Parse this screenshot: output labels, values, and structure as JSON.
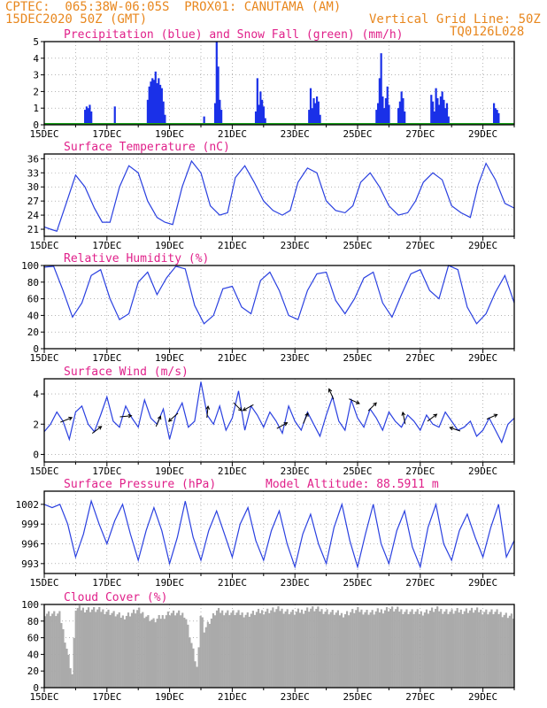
{
  "header": {
    "line1": "CPTEC:  065:38W-06:05S  PROX01: CANUTAMA (AM)",
    "line2_left": "15DEC2020 50Z (GMT)",
    "line2_right": "Vertical Grid Line: 50Z",
    "line3_right": "TQ0126L028"
  },
  "colors": {
    "precip": "#1a30e8",
    "snow": "#1aa01a",
    "line": "#2a40e0",
    "title": "#e0208a",
    "header": "#e8871e",
    "cloud": "#aaaaaa"
  },
  "x_tick_labels": [
    "15DEC",
    "17DEC",
    "19DEC",
    "21DEC",
    "23DEC",
    "25DEC",
    "27DEC",
    "29DEC"
  ],
  "x_range_days": [
    0,
    15
  ],
  "chart_data": [
    {
      "type": "bar",
      "title": "Precipitation (blue) and Snow Fall (green) (mm/h)",
      "ylim": [
        0,
        5
      ],
      "yticks": [
        "0",
        "1",
        "2",
        "3",
        "4",
        "5"
      ],
      "series": [
        {
          "name": "Precipitation",
          "x_days": [
            1.3,
            1.35,
            1.4,
            1.45,
            1.5,
            2.25,
            3.3,
            3.35,
            3.4,
            3.45,
            3.5,
            3.55,
            3.6,
            3.65,
            3.7,
            3.75,
            3.8,
            3.85,
            5.1,
            5.45,
            5.5,
            5.55,
            5.6,
            5.65,
            6.75,
            6.8,
            6.85,
            6.9,
            6.95,
            7.0,
            7.05,
            8.45,
            8.5,
            8.55,
            8.6,
            8.65,
            8.7,
            8.75,
            8.8,
            10.6,
            10.65,
            10.7,
            10.75,
            10.8,
            10.85,
            10.9,
            10.95,
            11.0,
            11.3,
            11.35,
            11.4,
            11.45,
            11.5,
            12.35,
            12.4,
            12.45,
            12.5,
            12.55,
            12.6,
            12.65,
            12.7,
            12.75,
            12.8,
            12.85,
            12.9,
            14.35,
            14.4,
            14.45,
            14.5
          ],
          "values": [
            0.9,
            1.1,
            1.0,
            1.2,
            0.8,
            1.1,
            1.5,
            2.3,
            2.6,
            2.8,
            2.7,
            3.2,
            2.5,
            2.8,
            2.4,
            2.2,
            1.4,
            0.6,
            0.5,
            1.3,
            5.0,
            3.5,
            1.5,
            0.9,
            0.8,
            2.8,
            1.2,
            2.0,
            1.5,
            1.1,
            0.4,
            0.9,
            2.2,
            1.0,
            1.6,
            1.3,
            1.7,
            1.4,
            0.6,
            0.9,
            1.3,
            2.8,
            4.3,
            1.7,
            1.0,
            1.6,
            2.3,
            1.2,
            1.0,
            1.4,
            2.0,
            1.6,
            0.8,
            1.8,
            1.4,
            0.8,
            2.2,
            1.6,
            1.2,
            1.7,
            2.0,
            1.5,
            1.0,
            1.3,
            0.5,
            1.3,
            1.0,
            0.9,
            0.7
          ]
        },
        {
          "name": "Snow Fall",
          "x_days": [
            0,
            15
          ],
          "values": [
            0,
            0
          ]
        }
      ]
    },
    {
      "type": "line",
      "title": "Surface Temperature (nC)",
      "ylim": [
        19.5,
        37
      ],
      "yticks": [
        "21",
        "24",
        "27",
        "30",
        "33",
        "36"
      ],
      "series": [
        {
          "name": "",
          "x_days": [
            0.0,
            0.2,
            0.4,
            0.7,
            1.0,
            1.3,
            1.6,
            1.85,
            2.1,
            2.4,
            2.7,
            3.0,
            3.3,
            3.6,
            3.85,
            4.1,
            4.4,
            4.7,
            5.0,
            5.3,
            5.6,
            5.85,
            6.1,
            6.4,
            6.7,
            7.0,
            7.3,
            7.6,
            7.85,
            8.1,
            8.4,
            8.7,
            9.0,
            9.3,
            9.6,
            9.85,
            10.1,
            10.4,
            10.7,
            11.0,
            11.3,
            11.6,
            11.85,
            12.1,
            12.4,
            12.7,
            13.0,
            13.3,
            13.6,
            13.85,
            14.1,
            14.4,
            14.7,
            15.0
          ],
          "values": [
            21.5,
            21.0,
            20.6,
            26.5,
            32.5,
            30.0,
            25.5,
            22.5,
            22.5,
            30.0,
            34.5,
            33.0,
            27.0,
            23.5,
            22.5,
            22.0,
            30.0,
            35.5,
            33.0,
            26.0,
            24.0,
            24.5,
            32.0,
            34.5,
            31.0,
            27.0,
            25.0,
            24.0,
            25.0,
            31.0,
            34.0,
            33.0,
            27.0,
            25.0,
            24.5,
            26.0,
            31.0,
            33.0,
            30.0,
            26.0,
            24.0,
            24.5,
            27.0,
            31.0,
            33.0,
            31.5,
            26.0,
            24.5,
            23.5,
            30.5,
            35.0,
            31.5,
            26.5,
            25.5
          ]
        },
        {
          "name": "",
          "x_days": [
            14.4,
            14.65,
            14.85,
            15.0
          ],
          "values": [
            25.5,
            33.0,
            32.0,
            30.5
          ]
        }
      ]
    },
    {
      "type": "line",
      "title": "Relative Humidity (%)",
      "ylim": [
        0,
        100
      ],
      "yticks": [
        "0",
        "20",
        "40",
        "60",
        "80",
        "100"
      ],
      "series": [
        {
          "name": "",
          "x_days": [
            0.0,
            0.3,
            0.6,
            0.9,
            1.2,
            1.5,
            1.8,
            2.1,
            2.4,
            2.7,
            3.0,
            3.3,
            3.6,
            3.9,
            4.2,
            4.5,
            4.8,
            5.1,
            5.4,
            5.7,
            6.0,
            6.3,
            6.6,
            6.9,
            7.2,
            7.5,
            7.8,
            8.1,
            8.4,
            8.7,
            9.0,
            9.3,
            9.6,
            9.9,
            10.2,
            10.5,
            10.8,
            11.1,
            11.4,
            11.7,
            12.0,
            12.3,
            12.6,
            12.9,
            13.2,
            13.5,
            13.8,
            14.1,
            14.4,
            14.7,
            15.0
          ],
          "values": [
            98,
            99,
            70,
            38,
            55,
            88,
            95,
            60,
            35,
            42,
            80,
            92,
            65,
            85,
            99,
            96,
            52,
            30,
            40,
            72,
            75,
            50,
            42,
            82,
            92,
            70,
            40,
            35,
            70,
            90,
            92,
            58,
            42,
            60,
            85,
            92,
            55,
            38,
            65,
            90,
            95,
            70,
            60,
            100,
            95,
            50,
            30,
            42,
            68,
            88,
            55
          ]
        }
      ]
    },
    {
      "type": "line",
      "title": "Surface Wind (m/s)",
      "ylim": [
        -0.5,
        5
      ],
      "yticks": [
        "0",
        "2",
        "4"
      ],
      "series": [
        {
          "name": "",
          "x_days": [
            0.0,
            0.2,
            0.4,
            0.6,
            0.8,
            1.0,
            1.2,
            1.4,
            1.6,
            1.8,
            2.0,
            2.2,
            2.4,
            2.6,
            2.8,
            3.0,
            3.2,
            3.4,
            3.6,
            3.8,
            4.0,
            4.2,
            4.4,
            4.6,
            4.8,
            5.0,
            5.2,
            5.4,
            5.6,
            5.8,
            6.0,
            6.2,
            6.4,
            6.6,
            6.8,
            7.0,
            7.2,
            7.4,
            7.6,
            7.8,
            8.0,
            8.2,
            8.4,
            8.6,
            8.8,
            9.0,
            9.2,
            9.4,
            9.6,
            9.8,
            10.0,
            10.2,
            10.4,
            10.6,
            10.8,
            11.0,
            11.2,
            11.4,
            11.6,
            11.8,
            12.0,
            12.2,
            12.4,
            12.6,
            12.8,
            13.0,
            13.2,
            13.4,
            13.6,
            13.8,
            14.0,
            14.2,
            14.4,
            14.6,
            14.8,
            15.0
          ],
          "values": [
            1.5,
            2.0,
            2.8,
            2.2,
            1.0,
            2.8,
            3.2,
            2.0,
            1.5,
            2.6,
            3.8,
            2.2,
            1.8,
            3.2,
            2.4,
            1.8,
            3.6,
            2.4,
            2.0,
            3.0,
            1.0,
            2.6,
            3.4,
            1.8,
            2.2,
            4.8,
            2.6,
            2.0,
            3.2,
            1.6,
            2.4,
            4.2,
            1.6,
            3.2,
            2.6,
            1.8,
            2.8,
            2.2,
            1.4,
            3.2,
            2.2,
            1.6,
            2.8,
            2.0,
            1.2,
            2.6,
            3.8,
            2.2,
            1.6,
            3.6,
            2.4,
            1.8,
            3.0,
            2.4,
            1.6,
            2.8,
            2.2,
            1.8,
            2.6,
            2.2,
            1.6,
            2.6,
            2.0,
            1.8,
            2.8,
            2.2,
            1.6,
            1.8,
            2.2,
            1.2,
            1.6,
            2.4,
            1.6,
            0.8,
            2.0,
            2.4
          ]
        }
      ],
      "arrows": [
        {
          "x_days": 0.6,
          "u": 1.0,
          "v": 0.4
        },
        {
          "x_days": 1.6,
          "u": 0.8,
          "v": 0.6
        },
        {
          "x_days": 2.5,
          "u": 1.0,
          "v": 0.1
        },
        {
          "x_days": 3.6,
          "u": 0.4,
          "v": 0.9
        },
        {
          "x_days": 4.2,
          "u": -0.8,
          "v": -0.7
        },
        {
          "x_days": 5.2,
          "u": 0.1,
          "v": 1.0
        },
        {
          "x_days": 6.1,
          "u": 0.7,
          "v": -0.7
        },
        {
          "x_days": 6.6,
          "u": -0.9,
          "v": -0.5
        },
        {
          "x_days": 7.5,
          "u": 0.9,
          "v": 0.5
        },
        {
          "x_days": 8.3,
          "u": 0.4,
          "v": 0.9
        },
        {
          "x_days": 9.2,
          "u": -0.4,
          "v": 0.9
        },
        {
          "x_days": 9.8,
          "u": 0.9,
          "v": -0.4
        },
        {
          "x_days": 10.4,
          "u": 0.7,
          "v": 0.7
        },
        {
          "x_days": 11.5,
          "u": -0.2,
          "v": 1.0
        },
        {
          "x_days": 12.3,
          "u": 0.8,
          "v": 0.6
        },
        {
          "x_days": 13.2,
          "u": -0.9,
          "v": 0.3
        },
        {
          "x_days": 14.2,
          "u": 0.9,
          "v": 0.4
        }
      ]
    },
    {
      "type": "line",
      "title": "Surface Pressure (hPa)",
      "subtitle": "Model Altitude: 88.5911 m",
      "ylim": [
        991.5,
        1004
      ],
      "yticks": [
        "993",
        "996",
        "999",
        "1002"
      ],
      "series": [
        {
          "name": "",
          "x_days": [
            0.0,
            0.25,
            0.5,
            0.75,
            1.0,
            1.25,
            1.5,
            1.75,
            2.0,
            2.25,
            2.5,
            2.75,
            3.0,
            3.25,
            3.5,
            3.75,
            4.0,
            4.25,
            4.5,
            4.75,
            5.0,
            5.25,
            5.5,
            5.75,
            6.0,
            6.25,
            6.5,
            6.75,
            7.0,
            7.25,
            7.5,
            7.75,
            8.0,
            8.25,
            8.5,
            8.75,
            9.0,
            9.25,
            9.5,
            9.75,
            10.0,
            10.25,
            10.5,
            10.75,
            11.0,
            11.25,
            11.5,
            11.75,
            12.0,
            12.25,
            12.5,
            12.75,
            13.0,
            13.25,
            13.5,
            13.75,
            14.0,
            14.25,
            14.5,
            14.75,
            15.0
          ],
          "values": [
            1002.0,
            1001.5,
            1002.0,
            999.0,
            994.0,
            997.5,
            1002.5,
            999.0,
            996.0,
            999.5,
            1002.0,
            997.5,
            993.5,
            998.0,
            1001.5,
            998.0,
            993.0,
            997.0,
            1002.5,
            997.0,
            993.5,
            998.0,
            1001.0,
            997.5,
            994.0,
            999.0,
            1001.5,
            996.5,
            993.5,
            998.0,
            1001.0,
            996.0,
            992.5,
            997.5,
            1000.5,
            996.0,
            993.0,
            998.5,
            1002.0,
            996.5,
            992.5,
            997.5,
            1002.0,
            996.0,
            993.0,
            998.0,
            1001.0,
            995.5,
            992.5,
            998.5,
            1002.0,
            996.0,
            993.5,
            998.0,
            1000.5,
            997.0,
            994.0,
            998.5,
            1002.0,
            994.0,
            996.5
          ]
        }
      ]
    },
    {
      "type": "bar",
      "title": "Cloud Cover (%)",
      "ylim": [
        0,
        100
      ],
      "yticks": [
        "0",
        "20",
        "40",
        "60",
        "80",
        "100"
      ],
      "series": [
        {
          "name": "",
          "x_days": [
            0,
            0.5,
            0.9,
            1.0,
            1.5,
            2.0,
            2.5,
            3.0,
            3.5,
            4.0,
            4.5,
            4.9,
            5.0,
            5.1,
            5.5,
            6.0,
            6.5,
            7.0,
            7.5,
            8.0,
            8.5,
            9.0,
            9.5,
            10.0,
            10.5,
            11.0,
            11.5,
            12.0,
            12.5,
            13.0,
            13.5,
            14.0,
            14.5,
            15.0
          ],
          "values": [
            90,
            88,
            15,
            95,
            94,
            92,
            85,
            93,
            80,
            90,
            88,
            20,
            95,
            70,
            92,
            90,
            88,
            92,
            94,
            90,
            95,
            92,
            88,
            93,
            90,
            95,
            92,
            90,
            94,
            91,
            93,
            92,
            90,
            85
          ]
        }
      ]
    }
  ]
}
